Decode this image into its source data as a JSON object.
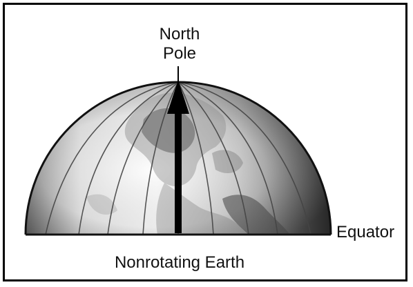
{
  "labels": {
    "north_pole_line1": "North",
    "north_pole_line2": "Pole",
    "equator": "Equator",
    "caption": "Nonrotating Earth"
  },
  "colors": {
    "frame": "#000000",
    "globe_light": "#eeeeee",
    "globe_mid": "#b8b8b8",
    "globe_dark": "#444444",
    "arrow": "#000000"
  },
  "icons": {
    "globe": "northern-hemisphere-globe",
    "axis": "up-arrow"
  }
}
